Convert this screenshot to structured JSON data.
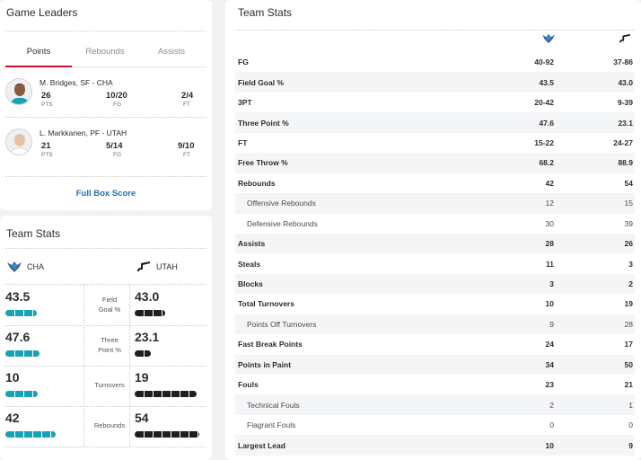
{
  "leaders": {
    "title": "Game Leaders",
    "tabs": [
      "Points",
      "Rebounds",
      "Assists"
    ],
    "active_tab": 0,
    "players": [
      {
        "name": "M. Bridges, SF - CHA",
        "stats": [
          {
            "value": "26",
            "label": "PTS"
          },
          {
            "value": "10/20",
            "label": "FG"
          },
          {
            "value": "2/4",
            "label": "FT"
          }
        ]
      },
      {
        "name": "L. Markkanen, PF - UTAH",
        "stats": [
          {
            "value": "21",
            "label": "PTS"
          },
          {
            "value": "5/14",
            "label": "FG"
          },
          {
            "value": "9/10",
            "label": "FT"
          }
        ]
      }
    ],
    "box_score_link": "Full Box Score"
  },
  "team_compare": {
    "title": "Team Stats",
    "team1": "CHA",
    "team2": "UTAH",
    "rows": [
      {
        "label": "Field Goal %",
        "v1": "43.5",
        "v2": "43.0",
        "frac1": 0.435,
        "frac2": 0.43
      },
      {
        "label": "Three Point %",
        "v1": "47.6",
        "v2": "23.1",
        "frac1": 0.476,
        "frac2": 0.231
      },
      {
        "label": "Turnovers",
        "v1": "10",
        "v2": "19",
        "frac1": 0.45,
        "frac2": 0.86
      },
      {
        "label": "Rebounds",
        "v1": "42",
        "v2": "54",
        "frac1": 0.7,
        "frac2": 0.9
      }
    ],
    "colors": {
      "cha": "#1aa1b6",
      "utah": "#1f1f1f"
    }
  },
  "team_stats": {
    "title": "Team Stats",
    "rows": [
      {
        "label": "FG",
        "v1": "40-92",
        "v2": "37-86",
        "type": "main"
      },
      {
        "label": "Field Goal %",
        "v1": "43.5",
        "v2": "43.0",
        "type": "main"
      },
      {
        "label": "3PT",
        "v1": "20-42",
        "v2": "9-39",
        "type": "main"
      },
      {
        "label": "Three Point %",
        "v1": "47.6",
        "v2": "23.1",
        "type": "main"
      },
      {
        "label": "FT",
        "v1": "15-22",
        "v2": "24-27",
        "type": "main"
      },
      {
        "label": "Free Throw %",
        "v1": "68.2",
        "v2": "88.9",
        "type": "main"
      },
      {
        "label": "Rebounds",
        "v1": "42",
        "v2": "54",
        "type": "main"
      },
      {
        "label": "Offensive Rebounds",
        "v1": "12",
        "v2": "15",
        "type": "sub"
      },
      {
        "label": "Defensive Rebounds",
        "v1": "30",
        "v2": "39",
        "type": "sub"
      },
      {
        "label": "Assists",
        "v1": "28",
        "v2": "26",
        "type": "main"
      },
      {
        "label": "Steals",
        "v1": "11",
        "v2": "3",
        "type": "main"
      },
      {
        "label": "Blocks",
        "v1": "3",
        "v2": "2",
        "type": "main"
      },
      {
        "label": "Total Turnovers",
        "v1": "10",
        "v2": "19",
        "type": "main"
      },
      {
        "label": "Points Off Turnovers",
        "v1": "9",
        "v2": "28",
        "type": "sub"
      },
      {
        "label": "Fast Break Points",
        "v1": "24",
        "v2": "17",
        "type": "main"
      },
      {
        "label": "Points in Paint",
        "v1": "34",
        "v2": "50",
        "type": "main"
      },
      {
        "label": "Fouls",
        "v1": "23",
        "v2": "21",
        "type": "main"
      },
      {
        "label": "Technical Fouls",
        "v1": "2",
        "v2": "1",
        "type": "sub"
      },
      {
        "label": "Flagrant Fouls",
        "v1": "0",
        "v2": "0",
        "type": "sub"
      },
      {
        "label": "Largest Lead",
        "v1": "10",
        "v2": "9",
        "type": "main"
      }
    ]
  },
  "icons": [
    "hornets-logo-icon",
    "jazz-logo-icon",
    "player-avatar-icon"
  ]
}
